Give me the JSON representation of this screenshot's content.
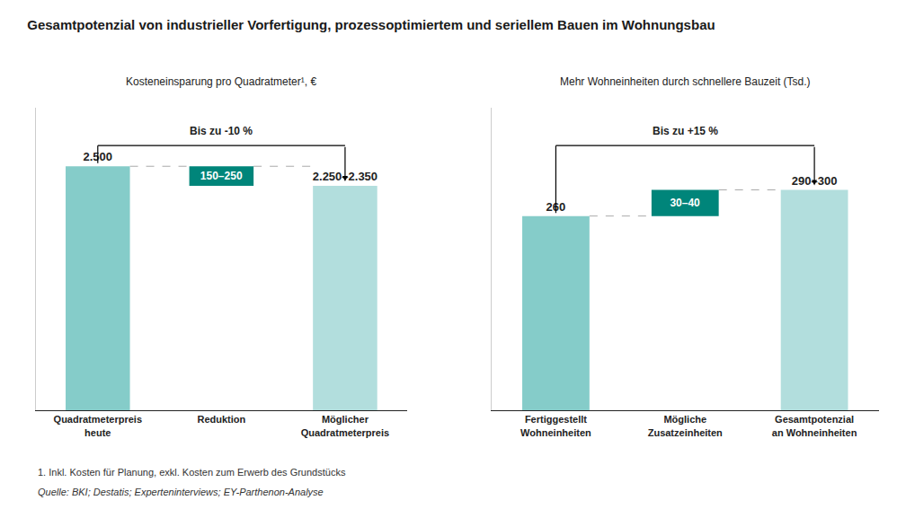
{
  "title": "Gesamtpotenzial von industrieller Vorfertigung, prozessoptimiertem und seriellem Bauen im Wohnungsbau",
  "annotations": [
    "1. Inkl. Kosten für Planung, exkl. Kosten zum Erwerb des Grundstücks",
    "Quelle: BKI; Destatis; Experteninterviews; EY-Parthenon-Analyse"
  ],
  "chart_data": [
    {
      "type": "bar",
      "subtitle": "Kosteneinsparung pro Quadratmeter¹, €",
      "categories": [
        "Quadratmeterpreis\nheute",
        "Reduktion",
        "Möglicher\nQuadratmeterpreis"
      ],
      "values": [
        2500,
        200,
        2300
      ],
      "bases": [
        null,
        2300,
        null
      ],
      "value_labels": [
        "2.500",
        "150–250",
        "2.250–2.350"
      ],
      "colors": [
        "#85ccc9",
        "#00857A",
        "#b2dedd"
      ],
      "ylim": [
        0,
        3100
      ],
      "dashed_lines": [
        2500,
        2500
      ],
      "annotations": [
        "Bis zu -10 %"
      ],
      "data_labels": true,
      "tick_labels": "x"
    },
    {
      "type": "bar",
      "subtitle": "Mehr Wohneinheiten durch schnellere Bauzeit (Tsd.)",
      "categories": [
        "Fertiggestellt\nWohneinheiten",
        "Mögliche\nZusatzeinheiten",
        "Gesamtpotenzial\nan Wohneinheiten"
      ],
      "values": [
        260,
        35,
        295
      ],
      "bases": [
        null,
        260,
        null
      ],
      "value_labels": [
        "260",
        "30–40",
        "290–300"
      ],
      "colors": [
        "#85ccc9",
        "#00857A",
        "#b2dedd"
      ],
      "ylim": [
        0,
        405
      ],
      "dashed_lines": [
        260,
        295
      ],
      "annotations": [
        "Bis zu +15 %"
      ],
      "data_labels": true,
      "tick_labels": "x"
    }
  ]
}
